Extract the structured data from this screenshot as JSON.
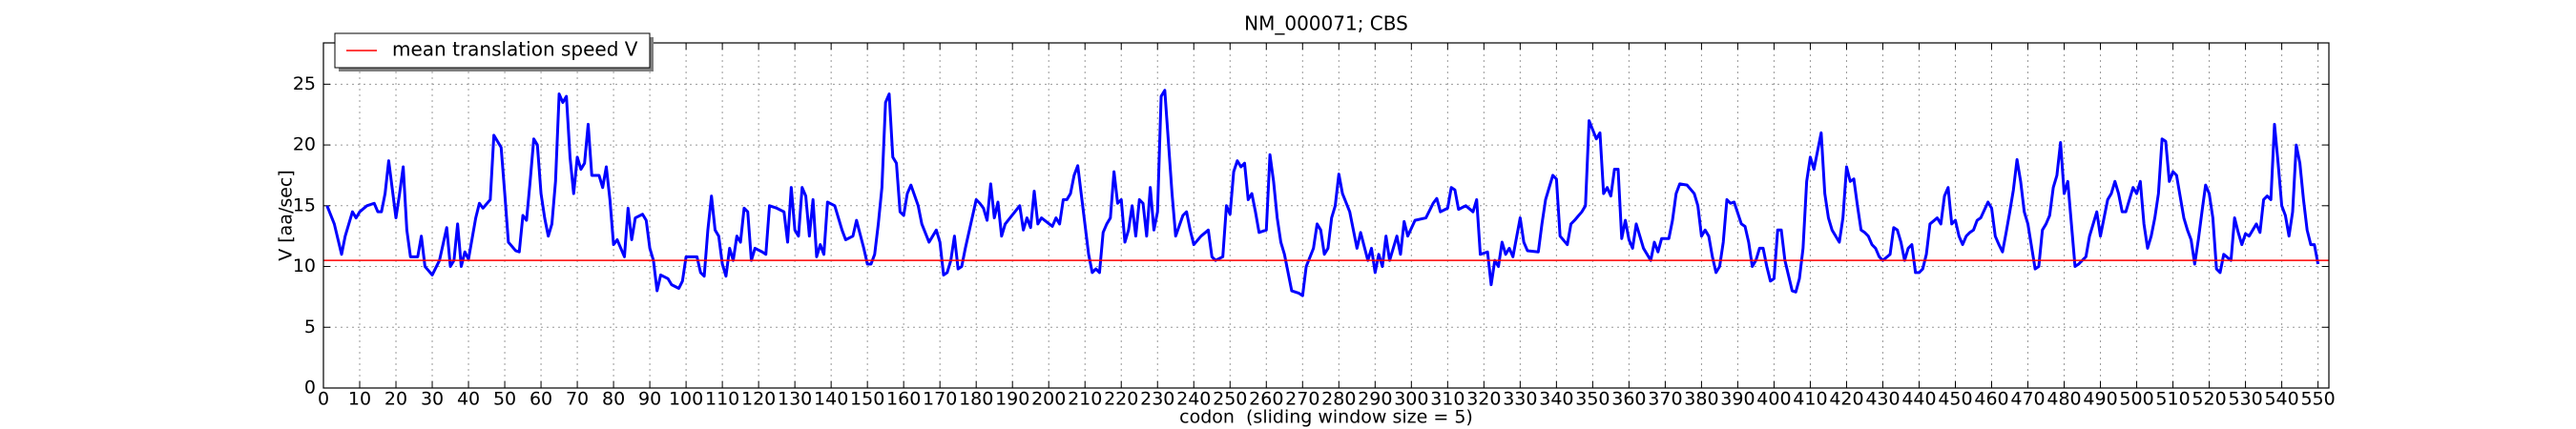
{
  "chart_data": {
    "type": "line",
    "title": "NM_000071; CBS",
    "xlabel": "codon  (sliding window size = 5)",
    "ylabel": "V [aa/sec]",
    "xlim": [
      0,
      553
    ],
    "ylim": [
      0,
      28.4
    ],
    "xticks": [
      0,
      10,
      20,
      30,
      40,
      50,
      60,
      70,
      80,
      90,
      100,
      110,
      120,
      130,
      140,
      150,
      160,
      170,
      180,
      190,
      200,
      210,
      220,
      230,
      240,
      250,
      260,
      270,
      280,
      290,
      300,
      310,
      320,
      330,
      340,
      350,
      360,
      370,
      380,
      390,
      400,
      410,
      420,
      430,
      440,
      450,
      460,
      470,
      480,
      490,
      500,
      510,
      520,
      530,
      540,
      550
    ],
    "yticks": [
      0,
      5,
      10,
      15,
      20,
      25
    ],
    "grid": true,
    "legend_position": "upper left",
    "x": [
      1,
      3,
      5,
      6,
      8,
      9,
      10,
      12,
      14,
      15,
      16,
      17,
      18,
      20,
      21,
      22,
      23,
      24,
      26,
      27,
      28,
      30,
      32,
      34,
      35,
      36,
      37,
      38,
      39,
      40,
      42,
      43,
      44,
      46,
      47,
      49,
      50,
      51,
      53,
      54,
      55,
      56,
      57,
      58,
      59,
      60,
      61,
      62,
      63,
      64,
      65,
      66,
      67,
      68,
      69,
      70,
      71,
      72,
      73,
      74,
      76,
      77,
      78,
      79,
      80,
      81,
      82,
      83,
      84,
      85,
      86,
      88,
      89,
      90,
      91,
      92,
      93,
      95,
      96,
      98,
      99,
      100,
      103,
      104,
      105,
      106,
      107,
      108,
      109,
      110,
      111,
      112,
      113,
      114,
      115,
      116,
      117,
      118,
      119,
      121,
      122,
      123,
      125,
      127,
      128,
      129,
      130,
      131,
      132,
      133,
      134,
      135,
      136,
      137,
      138,
      139,
      141,
      143,
      144,
      146,
      147,
      149,
      150,
      151,
      152,
      153,
      154,
      155,
      156,
      157,
      158,
      159,
      160,
      161,
      162,
      164,
      165,
      167,
      169,
      170,
      171,
      172,
      173,
      174,
      175,
      176,
      177,
      180,
      181,
      182,
      183,
      184,
      185,
      186,
      187,
      188,
      192,
      193,
      194,
      195,
      196,
      197,
      198,
      201,
      202,
      203,
      204,
      205,
      206,
      207,
      208,
      211,
      212,
      213,
      214,
      215,
      216,
      217,
      218,
      219,
      220,
      221,
      222,
      223,
      224,
      225,
      226,
      227,
      228,
      229,
      230,
      231,
      232,
      234,
      235,
      237,
      238,
      239,
      240,
      242,
      244,
      245,
      246,
      248,
      249,
      250,
      251,
      252,
      253,
      254,
      255,
      256,
      257,
      258,
      260,
      261,
      262,
      263,
      264,
      265,
      267,
      269,
      270,
      271,
      273,
      274,
      275,
      276,
      277,
      278,
      279,
      280,
      281,
      283,
      284,
      285,
      286,
      288,
      289,
      290,
      291,
      292,
      293,
      294,
      296,
      297,
      298,
      299,
      301,
      304,
      306,
      307,
      308,
      310,
      311,
      312,
      313,
      315,
      317,
      318,
      319,
      321,
      322,
      323,
      324,
      325,
      326,
      327,
      328,
      330,
      331,
      332,
      335,
      336,
      337,
      339,
      340,
      341,
      343,
      344,
      345,
      347,
      348,
      349,
      351,
      352,
      353,
      354,
      355,
      356,
      357,
      358,
      359,
      360,
      361,
      362,
      364,
      366,
      367,
      368,
      369,
      371,
      372,
      373,
      374,
      376,
      378,
      379,
      380,
      381,
      382,
      383,
      384,
      385,
      386,
      387,
      388,
      389,
      391,
      392,
      393,
      394,
      395,
      396,
      397,
      398,
      399,
      400,
      401,
      402,
      403,
      405,
      406,
      407,
      408,
      409,
      410,
      411,
      412,
      413,
      414,
      415,
      416,
      418,
      419,
      420,
      421,
      422,
      423,
      424,
      425,
      426,
      427,
      428,
      429,
      430,
      432,
      433,
      434,
      435,
      436,
      437,
      438,
      439,
      440,
      441,
      442,
      443,
      445,
      446,
      447,
      448,
      449,
      450,
      451,
      452,
      453,
      454,
      455,
      456,
      457,
      459,
      460,
      461,
      462,
      463,
      464,
      465,
      466,
      467,
      468,
      469,
      470,
      472,
      473,
      474,
      475,
      476,
      477,
      478,
      479,
      480,
      481,
      482,
      483,
      484,
      486,
      487,
      488,
      489,
      490,
      491,
      492,
      493,
      494,
      495,
      496,
      497,
      499,
      500,
      501,
      502,
      503,
      504,
      505,
      506,
      507,
      508,
      509,
      510,
      511,
      513,
      514,
      515,
      516,
      517,
      518,
      519,
      520,
      521,
      522,
      523,
      524,
      526,
      527,
      528,
      529,
      530,
      531,
      532,
      533,
      534,
      535,
      536,
      537,
      538,
      539,
      540,
      541,
      542,
      543,
      544,
      545,
      546,
      547,
      548,
      549,
      550
    ],
    "series": [
      {
        "name": "V",
        "color": "#0000ff",
        "values": [
          15,
          13.5,
          11,
          12.5,
          14.5,
          14,
          14.5,
          15,
          15.2,
          14.5,
          14.5,
          16,
          18.7,
          14,
          16,
          18.2,
          13,
          10.8,
          10.8,
          12.5,
          10,
          9.3,
          10.5,
          13.2,
          10,
          10.5,
          13.5,
          10,
          11.2,
          10.6,
          14,
          15.2,
          14.8,
          15.5,
          20.8,
          19.8,
          16,
          12,
          11.3,
          11.2,
          14.2,
          13.8,
          17,
          20.5,
          20,
          16,
          14,
          12.5,
          13.5,
          17,
          24.2,
          23.5,
          24,
          19,
          16,
          19,
          18,
          18.5,
          21.7,
          17.5,
          17.5,
          16.5,
          18.2,
          15.5,
          11.8,
          12.2,
          11.5,
          10.8,
          14.8,
          12.2,
          14,
          14.3,
          13.8,
          11.5,
          10.5,
          8,
          9.3,
          9,
          8.5,
          8.2,
          8.8,
          10.8,
          10.8,
          9.5,
          9.2,
          13,
          15.8,
          13,
          12.5,
          10.2,
          9.2,
          11.5,
          10.5,
          12.5,
          12,
          14.8,
          14.5,
          10.5,
          11.5,
          11.2,
          11,
          15,
          14.8,
          14.5,
          12,
          16.5,
          13,
          12.5,
          16.5,
          15.8,
          12.5,
          15.5,
          10.8,
          11.8,
          11,
          15.3,
          15,
          13,
          12.2,
          12.5,
          13.8,
          11.5,
          10.2,
          10.2,
          11,
          13.5,
          16.5,
          23.5,
          24.2,
          19,
          18.5,
          14.5,
          14.2,
          16,
          16.7,
          15,
          13.5,
          12,
          13,
          12,
          9.3,
          9.5,
          10.5,
          12.5,
          9.8,
          10,
          11.5,
          15.5,
          15.2,
          14.8,
          13.8,
          16.8,
          14,
          15.3,
          12.5,
          13.5,
          15,
          13,
          14,
          13.2,
          16.2,
          13.5,
          14,
          13.3,
          14,
          13.5,
          15.5,
          15.5,
          16,
          17.5,
          18.3,
          11,
          9.5,
          9.8,
          9.5,
          12.8,
          13.5,
          14,
          17.8,
          15.2,
          15.5,
          12,
          13,
          15,
          12.5,
          15.5,
          15.2,
          12.5,
          16.5,
          13,
          14.5,
          24,
          24.5,
          16,
          12.5,
          14.2,
          14.5,
          13,
          11.8,
          12.5,
          13,
          10.8,
          10.5,
          10.8,
          15,
          14.3,
          17.8,
          18.7,
          18.2,
          18.5,
          15.5,
          16,
          14.5,
          12.8,
          13,
          19.2,
          17,
          14,
          12,
          11,
          8,
          7.8,
          7.6,
          10,
          11.5,
          13.5,
          13,
          11,
          11.5,
          14,
          15,
          17.6,
          16,
          14.5,
          13,
          11.5,
          12.8,
          10.5,
          11.5,
          9.5,
          11,
          10,
          12.5,
          10.5,
          12.5,
          11,
          13.7,
          12.5,
          13.8,
          14,
          15.2,
          15.6,
          14.5,
          14.8,
          16.5,
          16.3,
          14.7,
          15,
          14.5,
          15.5,
          11,
          11.2,
          8.5,
          10.5,
          10,
          12,
          11,
          11.5,
          10.8,
          14,
          12,
          11.3,
          11.2,
          13.5,
          15.5,
          17.5,
          17.2,
          12.5,
          11.8,
          13.5,
          13.8,
          14.5,
          15,
          22,
          20.5,
          21,
          16,
          16.5,
          15.8,
          18,
          18,
          12.3,
          13.8,
          12.2,
          11.5,
          13.5,
          11.5,
          10.5,
          12,
          11.2,
          12.3,
          12.3,
          13.8,
          16,
          16.8,
          16.7,
          16,
          15,
          12.5,
          13,
          12.5,
          10.8,
          9.5,
          10,
          12,
          15.5,
          15.2,
          15.3,
          13.5,
          13.3,
          12,
          10,
          10.5,
          11.5,
          11.5,
          10,
          8.8,
          9,
          13,
          13,
          10.5,
          8,
          7.9,
          9,
          11.5,
          17,
          19,
          18,
          19.5,
          21,
          16,
          14,
          13,
          12,
          14,
          18.2,
          17,
          17.2,
          15,
          13,
          12.8,
          12.5,
          11.8,
          11.5,
          10.8,
          10.5,
          11,
          13.2,
          13,
          12,
          10.5,
          11.5,
          11.8,
          9.5,
          9.5,
          9.8,
          11,
          13.5,
          14,
          13.5,
          15.8,
          16.5,
          13.5,
          13.8,
          12.5,
          11.8,
          12.5,
          12.8,
          13,
          13.8,
          14,
          15.3,
          14.8,
          12.5,
          11.8,
          11.2,
          12.8,
          14.5,
          16.3,
          18.8,
          17,
          14.5,
          13.5,
          9.8,
          10,
          13,
          13.5,
          14.2,
          16.5,
          17.5,
          20.2,
          16,
          17,
          13.5,
          10,
          10.2,
          10.8,
          12.5,
          13.5,
          14.5,
          12.5,
          14,
          15.5,
          16,
          17,
          16,
          14.5,
          14.5,
          16.5,
          16,
          17,
          13.5,
          11.5,
          12.5,
          14,
          16,
          20.5,
          20.3,
          17,
          17.8,
          17.5,
          14,
          13,
          12.2,
          10.2,
          12.2,
          14.5,
          16.7,
          16,
          14,
          9.8,
          9.5,
          11,
          10.5,
          14,
          12.8,
          11.8,
          12.7,
          12.5,
          13,
          13.5,
          12.8,
          15.5,
          15.8,
          15.5,
          21.7,
          18.5,
          15,
          14.2,
          12.5,
          14.5,
          20,
          18.5,
          15.5,
          13,
          11.8,
          11.8,
          10.2
        ]
      }
    ],
    "mean_line": {
      "name": "mean translation speed V",
      "color": "#ff0000",
      "value": 10.5
    }
  }
}
